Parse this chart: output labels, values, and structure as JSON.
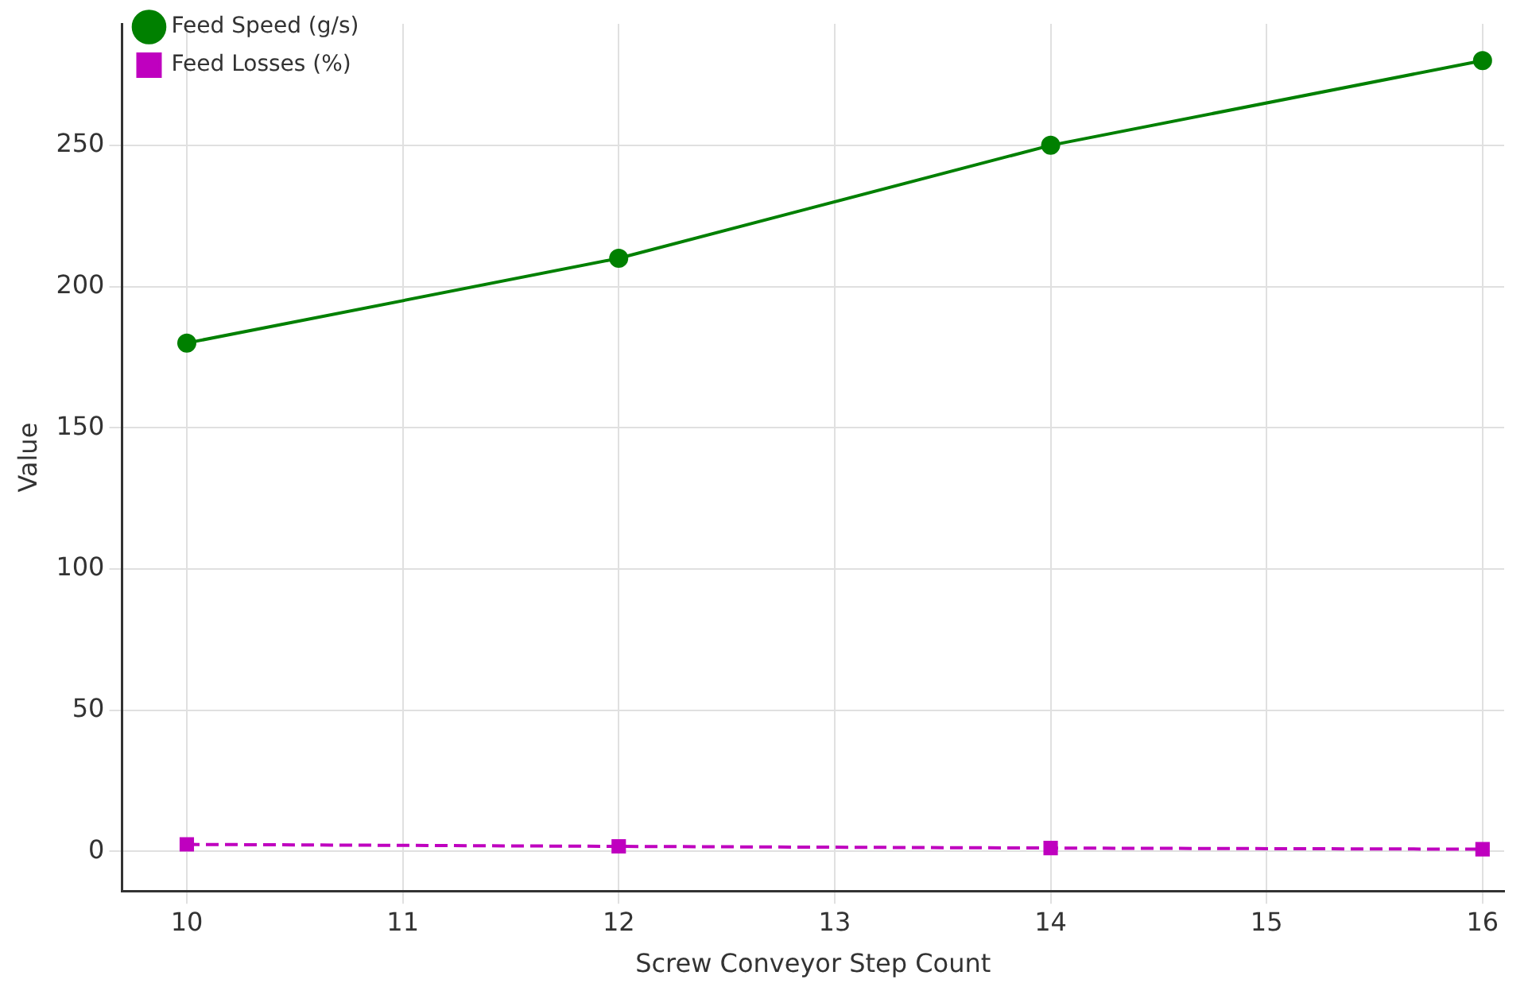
{
  "chart_data": {
    "type": "line",
    "xlabel": "Screw Conveyor Step Count",
    "ylabel": "Value",
    "x": [
      10,
      12,
      14,
      16
    ],
    "series": [
      {
        "name": "Feed Speed (g/s)",
        "color": "#008000",
        "values": [
          180,
          210,
          250,
          280
        ],
        "marker": "circle",
        "line_style": "solid"
      },
      {
        "name": "Feed Losses (%)",
        "color": "#bf00bf",
        "values": [
          2.5,
          1.8,
          1.2,
          0.8
        ],
        "marker": "square",
        "line_style": "dashed"
      }
    ],
    "xlim": [
      9.7,
      16.1
    ],
    "xticks": [
      10,
      11,
      12,
      13,
      14,
      15,
      16
    ],
    "ylim": [
      -14,
      293
    ],
    "yticks": [
      0,
      50,
      100,
      150,
      200,
      250
    ],
    "grid": true,
    "legend": "top left"
  }
}
